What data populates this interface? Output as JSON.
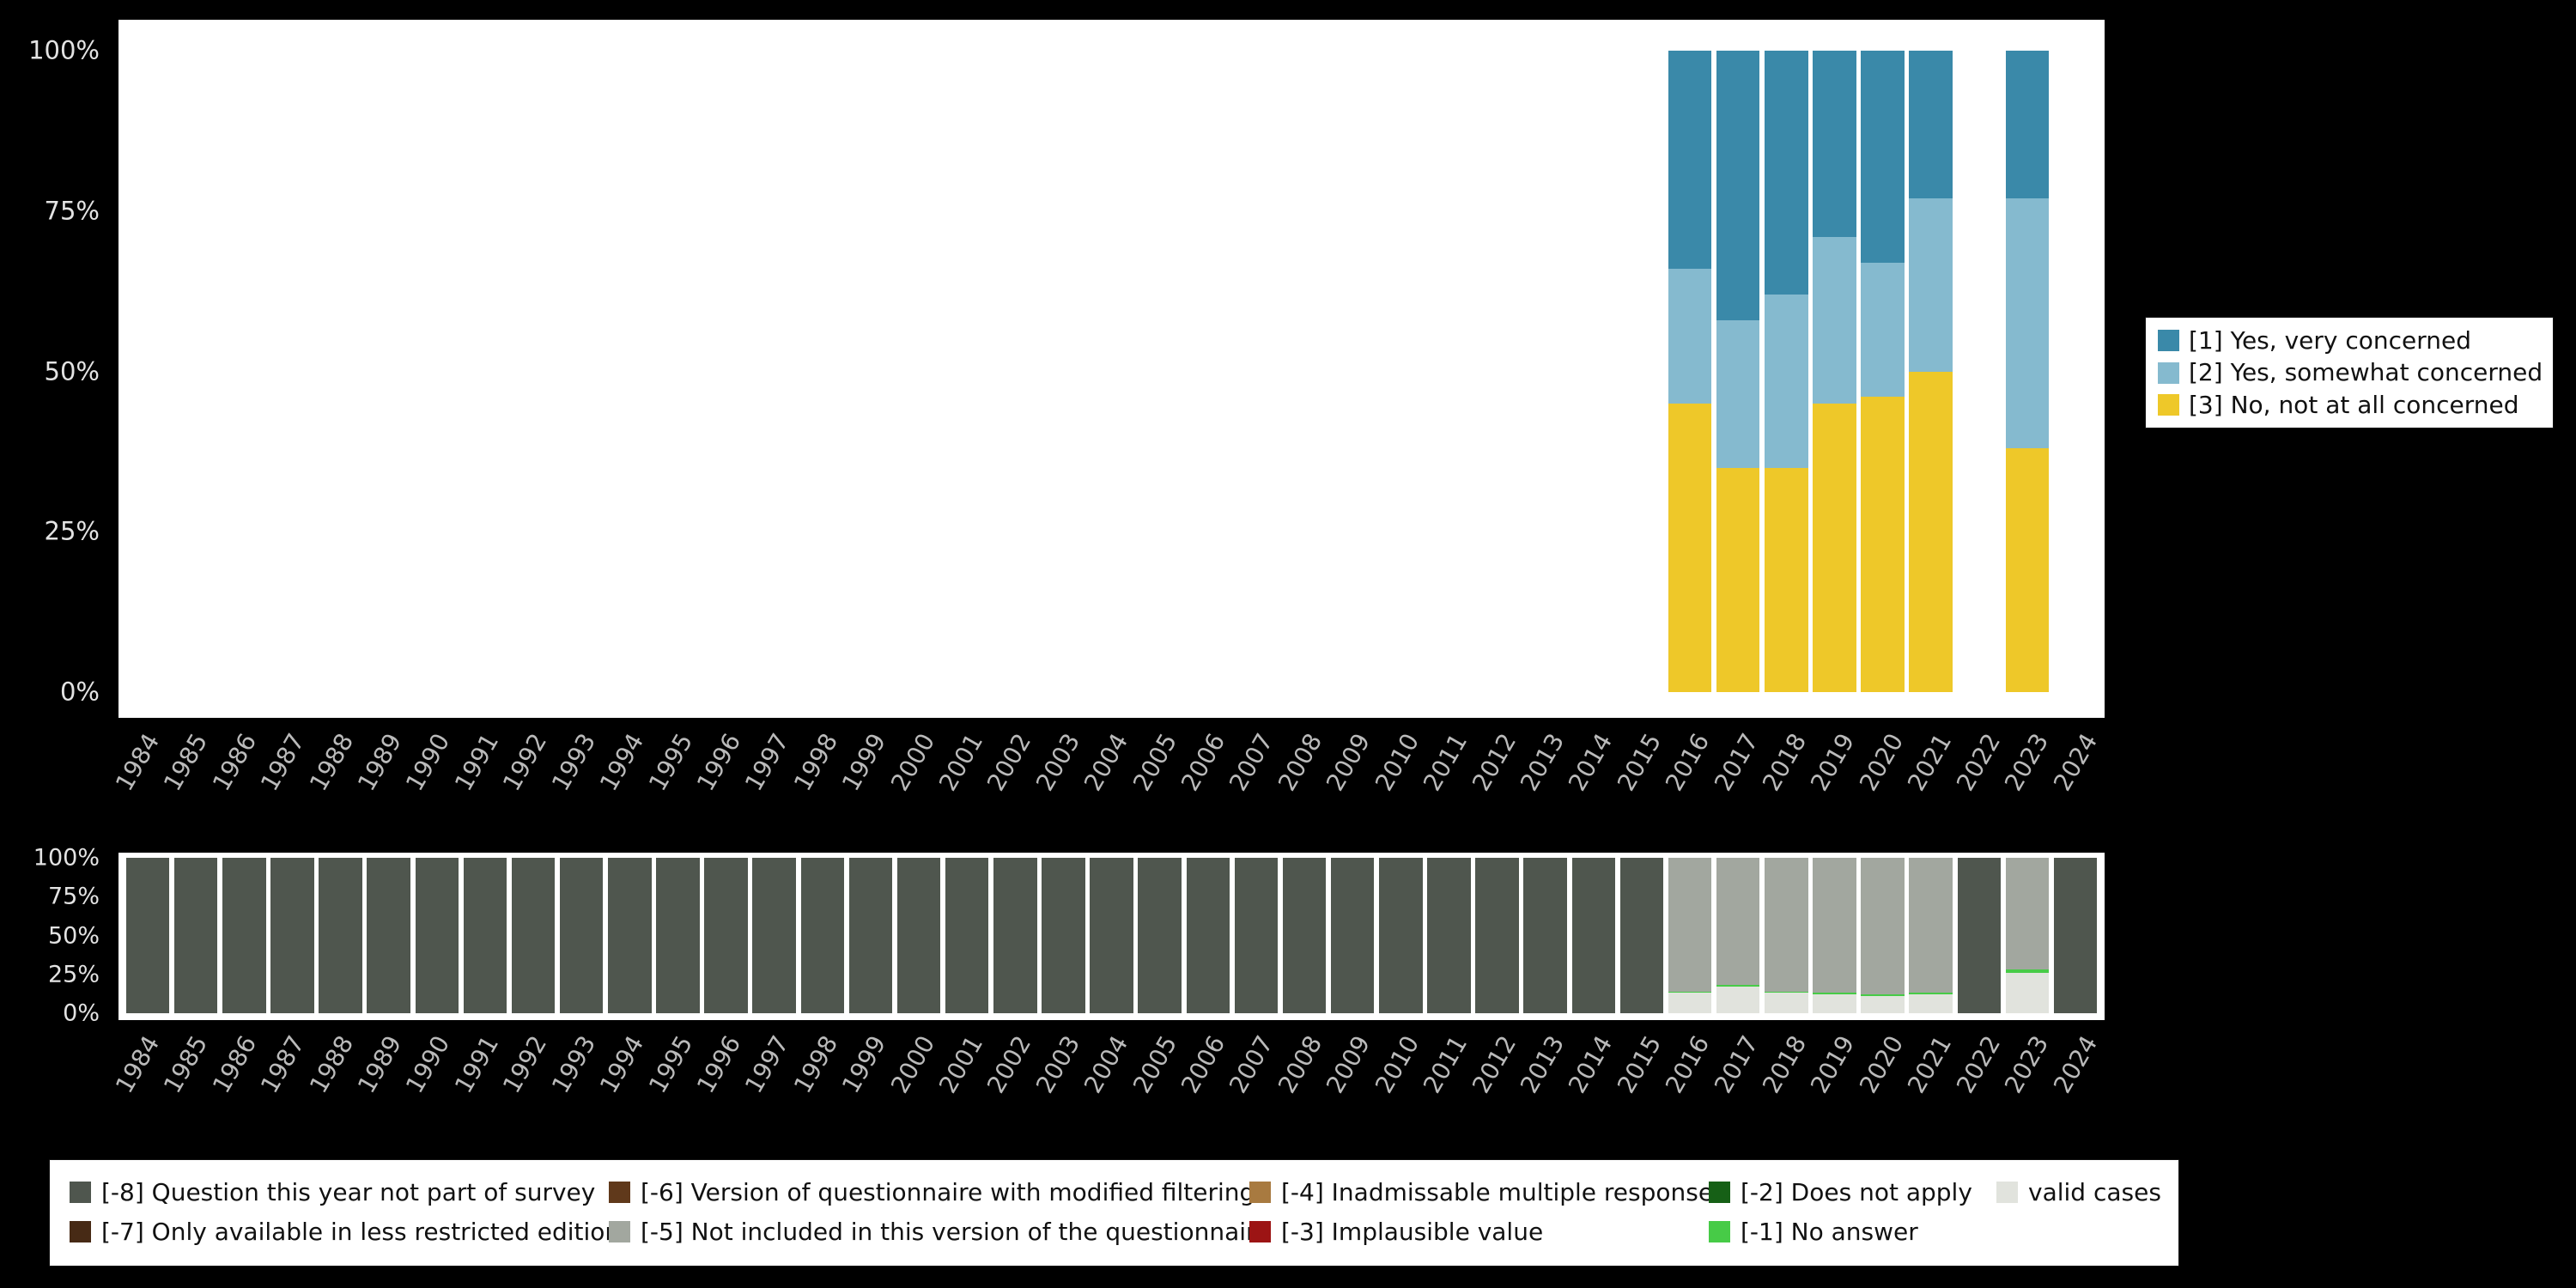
{
  "colors": {
    "background": "#000000",
    "panel": "#ffffff",
    "axis_text": "#bababa",
    "tick_text": "#e3e3e3",
    "very_concerned": "#3a89a9",
    "somewhat_concerned": "#85bacf",
    "not_concerned": "#eec829",
    "m8": "#4f564e",
    "m7": "#472a15",
    "m6": "#60391b",
    "m5": "#a2a79f",
    "m4": "#a87a40",
    "m3": "#9c1414",
    "m2": "#166016",
    "m1": "#47cb47",
    "valid": "#e1e3dd"
  },
  "years": [
    "1984",
    "1985",
    "1986",
    "1987",
    "1988",
    "1989",
    "1990",
    "1991",
    "1992",
    "1993",
    "1994",
    "1995",
    "1996",
    "1997",
    "1998",
    "1999",
    "2000",
    "2001",
    "2002",
    "2003",
    "2004",
    "2005",
    "2006",
    "2007",
    "2008",
    "2009",
    "2010",
    "2011",
    "2012",
    "2013",
    "2014",
    "2015",
    "2016",
    "2017",
    "2018",
    "2019",
    "2020",
    "2021",
    "2022",
    "2023",
    "2024"
  ],
  "chart_data": [
    {
      "id": "substantive-distribution",
      "type": "bar",
      "stacked": true,
      "title": "",
      "xlabel": "",
      "ylabel": "",
      "ylim": [
        0,
        100
      ],
      "grid": false,
      "legend_position": "right",
      "yticks": [
        0,
        25,
        50,
        75,
        100
      ],
      "ytick_labels": [
        "0%",
        "25%",
        "50%",
        "75%",
        "100%"
      ],
      "categories": [
        "1984",
        "1985",
        "1986",
        "1987",
        "1988",
        "1989",
        "1990",
        "1991",
        "1992",
        "1993",
        "1994",
        "1995",
        "1996",
        "1997",
        "1998",
        "1999",
        "2000",
        "2001",
        "2002",
        "2003",
        "2004",
        "2005",
        "2006",
        "2007",
        "2008",
        "2009",
        "2010",
        "2011",
        "2012",
        "2013",
        "2014",
        "2015",
        "2016",
        "2017",
        "2018",
        "2019",
        "2020",
        "2021",
        "2022",
        "2023",
        "2024"
      ],
      "series": [
        {
          "name": "[3] No, not at all concerned",
          "color": "#eec829",
          "values": [
            0,
            0,
            0,
            0,
            0,
            0,
            0,
            0,
            0,
            0,
            0,
            0,
            0,
            0,
            0,
            0,
            0,
            0,
            0,
            0,
            0,
            0,
            0,
            0,
            0,
            0,
            0,
            0,
            0,
            0,
            0,
            0,
            45,
            35,
            35,
            45,
            46,
            50,
            0,
            38,
            0
          ]
        },
        {
          "name": "[2] Yes, somewhat concerned",
          "color": "#85bacf",
          "values": [
            0,
            0,
            0,
            0,
            0,
            0,
            0,
            0,
            0,
            0,
            0,
            0,
            0,
            0,
            0,
            0,
            0,
            0,
            0,
            0,
            0,
            0,
            0,
            0,
            0,
            0,
            0,
            0,
            0,
            0,
            0,
            0,
            21,
            23,
            27,
            26,
            21,
            27,
            0,
            39,
            0
          ]
        },
        {
          "name": "[1] Yes, very concerned",
          "color": "#3a89a9",
          "values": [
            0,
            0,
            0,
            0,
            0,
            0,
            0,
            0,
            0,
            0,
            0,
            0,
            0,
            0,
            0,
            0,
            0,
            0,
            0,
            0,
            0,
            0,
            0,
            0,
            0,
            0,
            0,
            0,
            0,
            0,
            0,
            0,
            34,
            42,
            38,
            29,
            33,
            23,
            0,
            23,
            0
          ]
        }
      ]
    },
    {
      "id": "missing-values-distribution",
      "type": "bar",
      "stacked": true,
      "title": "",
      "xlabel": "",
      "ylabel": "",
      "ylim": [
        0,
        100
      ],
      "grid": false,
      "legend_position": "bottom",
      "yticks": [
        0,
        25,
        50,
        75,
        100
      ],
      "ytick_labels": [
        "0%",
        "25%",
        "50%",
        "75%",
        "100%"
      ],
      "categories": [
        "1984",
        "1985",
        "1986",
        "1987",
        "1988",
        "1989",
        "1990",
        "1991",
        "1992",
        "1993",
        "1994",
        "1995",
        "1996",
        "1997",
        "1998",
        "1999",
        "2000",
        "2001",
        "2002",
        "2003",
        "2004",
        "2005",
        "2006",
        "2007",
        "2008",
        "2009",
        "2010",
        "2011",
        "2012",
        "2013",
        "2014",
        "2015",
        "2016",
        "2017",
        "2018",
        "2019",
        "2020",
        "2021",
        "2022",
        "2023",
        "2024"
      ],
      "series": [
        {
          "name": "valid cases",
          "color": "#e1e3dd",
          "values": [
            0,
            0,
            0,
            0,
            0,
            0,
            0,
            0,
            0,
            0,
            0,
            0,
            0,
            0,
            0,
            0,
            0,
            0,
            0,
            0,
            0,
            0,
            0,
            0,
            0,
            0,
            0,
            0,
            0,
            0,
            0,
            0,
            13,
            17,
            13,
            12,
            11,
            12,
            0,
            26,
            0
          ]
        },
        {
          "name": "[-1] No answer",
          "color": "#47cb47",
          "values": [
            0,
            0,
            0,
            0,
            0,
            0,
            0,
            0,
            0,
            0,
            0,
            0,
            0,
            0,
            0,
            0,
            0,
            0,
            0,
            0,
            0,
            0,
            0,
            0,
            0,
            0,
            0,
            0,
            0,
            0,
            0,
            0,
            1,
            1,
            1,
            1,
            1,
            1,
            0,
            2,
            0
          ]
        },
        {
          "name": "[-5] Not included in this version of the questionnaire",
          "color": "#a2a79f",
          "values": [
            0,
            0,
            0,
            0,
            0,
            0,
            0,
            0,
            0,
            0,
            0,
            0,
            0,
            0,
            0,
            0,
            0,
            0,
            0,
            0,
            0,
            0,
            0,
            0,
            0,
            0,
            0,
            0,
            0,
            0,
            0,
            0,
            86,
            82,
            86,
            87,
            88,
            87,
            0,
            72,
            0
          ]
        },
        {
          "name": "[-8] Question this year not part of survey",
          "color": "#4f564e",
          "values": [
            100,
            100,
            100,
            100,
            100,
            100,
            100,
            100,
            100,
            100,
            100,
            100,
            100,
            100,
            100,
            100,
            100,
            100,
            100,
            100,
            100,
            100,
            100,
            100,
            100,
            100,
            100,
            100,
            100,
            100,
            100,
            100,
            0,
            0,
            0,
            0,
            0,
            0,
            100,
            0,
            100
          ]
        }
      ]
    }
  ],
  "legend_top": {
    "items": [
      {
        "label": "[1] Yes, very concerned",
        "color": "#3a89a9"
      },
      {
        "label": "[2] Yes, somewhat concerned",
        "color": "#85bacf"
      },
      {
        "label": "[3] No, not at all concerned",
        "color": "#eec829"
      }
    ]
  },
  "legend_bottom": {
    "columns": [
      [
        {
          "label": "[-8] Question this year not part of survey",
          "color": "#4f564e"
        },
        {
          "label": "[-7] Only available in less restricted edition",
          "color": "#472a15"
        }
      ],
      [
        {
          "label": "[-6] Version of questionnaire with modified filtering",
          "color": "#60391b"
        },
        {
          "label": "[-5] Not included in this version of the questionnaire",
          "color": "#a2a79f"
        }
      ],
      [
        {
          "label": "[-4] Inadmissable multiple response",
          "color": "#a87a40"
        },
        {
          "label": "[-3] Implausible value",
          "color": "#9c1414"
        }
      ],
      [
        {
          "label": "[-2] Does not apply",
          "color": "#166016"
        },
        {
          "label": "[-1] No answer",
          "color": "#47cb47"
        }
      ],
      [
        {
          "label": "valid cases",
          "color": "#e1e3dd"
        }
      ]
    ]
  }
}
